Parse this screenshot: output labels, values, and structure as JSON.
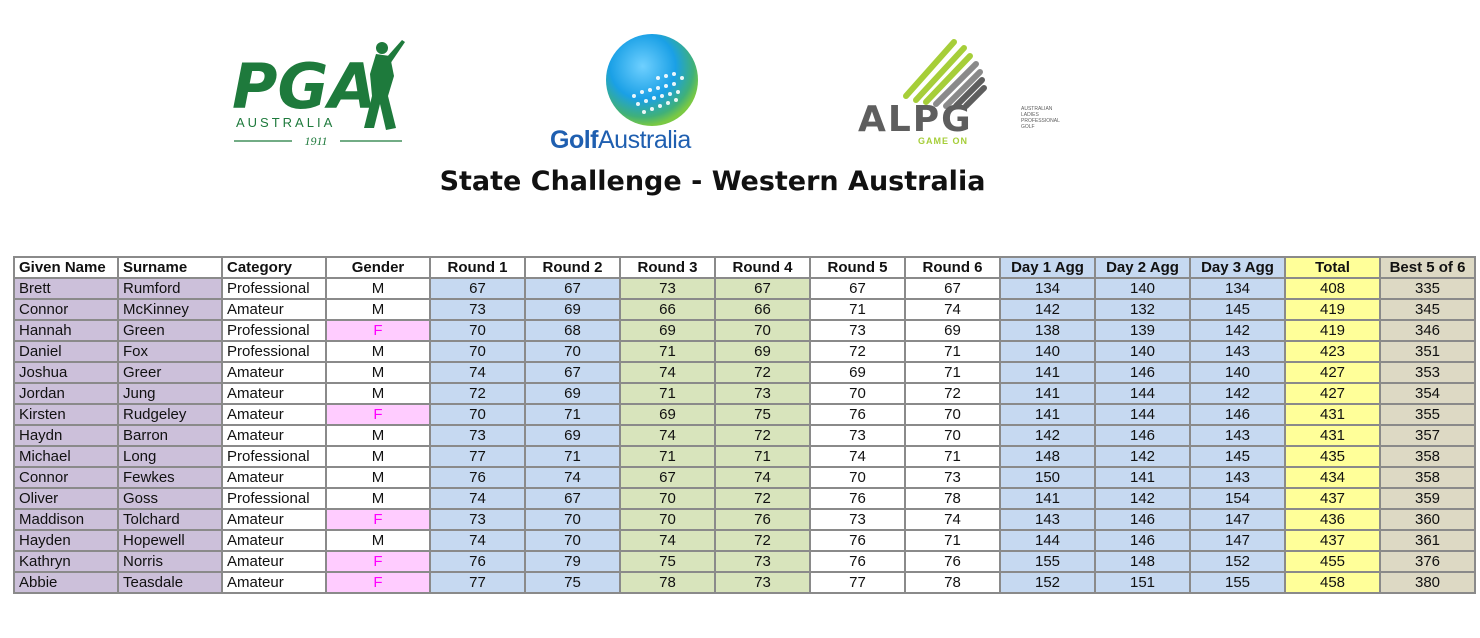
{
  "logos": {
    "pga": {
      "wordmark": "PGA",
      "country": "AUSTRALIA",
      "year": "1911",
      "color": "#1e7a3c"
    },
    "golf_australia": {
      "word1": "Golf",
      "word2": "Australia",
      "text_color": "#1f5fb0",
      "globe_colors": [
        "#1aa0e6",
        "#7ac943"
      ]
    },
    "alpg": {
      "wordmark": "ALPG",
      "tagline": "GAME ON",
      "small_lines": [
        "AUSTRALIAN",
        "LADIES",
        "PROFESSIONAL",
        "GOLF"
      ],
      "accent": "#a6ce39",
      "gray": "#5e5e5e"
    }
  },
  "title": "State Challenge - Western Australia",
  "table": {
    "headers": [
      "Given Name",
      "Surname",
      "Category",
      "Gender",
      "Round 1",
      "Round 2",
      "Round 3",
      "Round 4",
      "Round 5",
      "Round 6",
      "Day 1 Agg",
      "Day 2 Agg",
      "Day 3 Agg",
      "Total",
      "Best 5 of 6"
    ],
    "header_colors": [
      "#ffffff",
      "#ffffff",
      "#ffffff",
      "#ffffff",
      "#ffffff",
      "#ffffff",
      "#ffffff",
      "#ffffff",
      "#ffffff",
      "#ffffff",
      "#c6d9f1",
      "#c6d9f1",
      "#c6d9f1",
      "#ffff99",
      "#ddd9c4"
    ],
    "rows": [
      [
        "Brett",
        "Rumford",
        "Professional",
        "M",
        "67",
        "67",
        "73",
        "67",
        "67",
        "67",
        "134",
        "140",
        "134",
        "408",
        "335"
      ],
      [
        "Connor",
        "McKinney",
        "Amateur",
        "M",
        "73",
        "69",
        "66",
        "66",
        "71",
        "74",
        "142",
        "132",
        "145",
        "419",
        "345"
      ],
      [
        "Hannah",
        "Green",
        "Professional",
        "F",
        "70",
        "68",
        "69",
        "70",
        "73",
        "69",
        "138",
        "139",
        "142",
        "419",
        "346"
      ],
      [
        "Daniel",
        "Fox",
        "Professional",
        "M",
        "70",
        "70",
        "71",
        "69",
        "72",
        "71",
        "140",
        "140",
        "143",
        "423",
        "351"
      ],
      [
        "Joshua",
        "Greer",
        "Amateur",
        "M",
        "74",
        "67",
        "74",
        "72",
        "69",
        "71",
        "141",
        "146",
        "140",
        "427",
        "353"
      ],
      [
        "Jordan",
        "Jung",
        "Amateur",
        "M",
        "72",
        "69",
        "71",
        "73",
        "70",
        "72",
        "141",
        "144",
        "142",
        "427",
        "354"
      ],
      [
        "Kirsten",
        "Rudgeley",
        "Amateur",
        "F",
        "70",
        "71",
        "69",
        "75",
        "76",
        "70",
        "141",
        "144",
        "146",
        "431",
        "355"
      ],
      [
        "Haydn",
        "Barron",
        "Amateur",
        "M",
        "73",
        "69",
        "74",
        "72",
        "73",
        "70",
        "142",
        "146",
        "143",
        "431",
        "357"
      ],
      [
        "Michael",
        "Long",
        "Professional",
        "M",
        "77",
        "71",
        "71",
        "71",
        "74",
        "71",
        "148",
        "142",
        "145",
        "435",
        "358"
      ],
      [
        "Connor",
        "Fewkes",
        "Amateur",
        "M",
        "76",
        "74",
        "67",
        "74",
        "70",
        "73",
        "150",
        "141",
        "143",
        "434",
        "358"
      ],
      [
        "Oliver",
        "Goss",
        "Professional",
        "M",
        "74",
        "67",
        "70",
        "72",
        "76",
        "78",
        "141",
        "142",
        "154",
        "437",
        "359"
      ],
      [
        "Maddison",
        "Tolchard",
        "Amateur",
        "F",
        "73",
        "70",
        "70",
        "76",
        "73",
        "74",
        "143",
        "146",
        "147",
        "436",
        "360"
      ],
      [
        "Hayden",
        "Hopewell",
        "Amateur",
        "M",
        "74",
        "70",
        "74",
        "72",
        "76",
        "71",
        "144",
        "146",
        "147",
        "437",
        "361"
      ],
      [
        "Kathryn",
        "Norris",
        "Amateur",
        "F",
        "76",
        "79",
        "75",
        "73",
        "76",
        "76",
        "155",
        "148",
        "152",
        "455",
        "376"
      ],
      [
        "Abbie",
        "Teasdale",
        "Amateur",
        "F",
        "77",
        "75",
        "78",
        "73",
        "77",
        "78",
        "152",
        "151",
        "155",
        "458",
        "380"
      ]
    ]
  }
}
